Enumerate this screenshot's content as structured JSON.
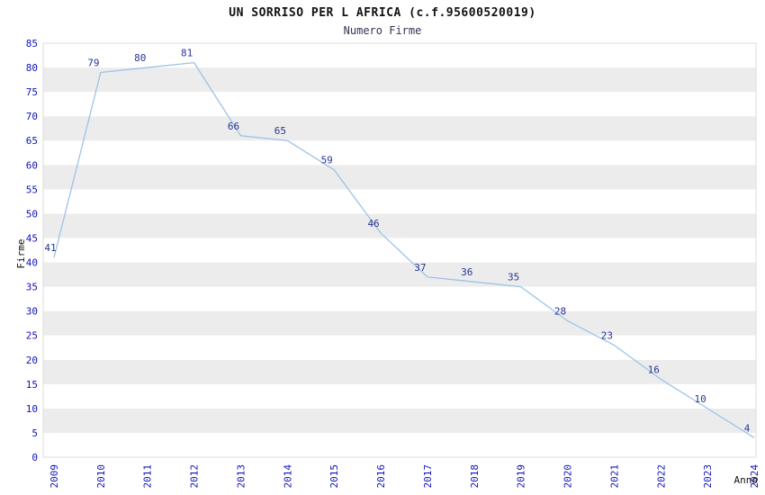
{
  "chart_data": {
    "type": "line",
    "title": "UN SORRISO PER L AFRICA (c.f.95600520019)",
    "subtitle": "Numero Firme",
    "xlabel": "Anno",
    "ylabel": "Firme",
    "categories": [
      "2009",
      "2010",
      "2011",
      "2012",
      "2013",
      "2014",
      "2015",
      "2016",
      "2017",
      "2018",
      "2019",
      "2020",
      "2021",
      "2022",
      "2023",
      "2024"
    ],
    "values": [
      41,
      79,
      80,
      81,
      66,
      65,
      59,
      46,
      37,
      36,
      35,
      28,
      23,
      16,
      10,
      4
    ],
    "ylim": [
      0,
      85
    ],
    "ytick_step": 5,
    "grid": "alternating-horizontal-bands",
    "legend": "none",
    "colors": {
      "line": "#9dc3e6",
      "tick_label": "#1111bb",
      "data_label": "#283593",
      "band_gray": "#ececec",
      "band_white": "#ffffff",
      "plot_border": "#dddddd",
      "axis_title": "#111111"
    }
  }
}
